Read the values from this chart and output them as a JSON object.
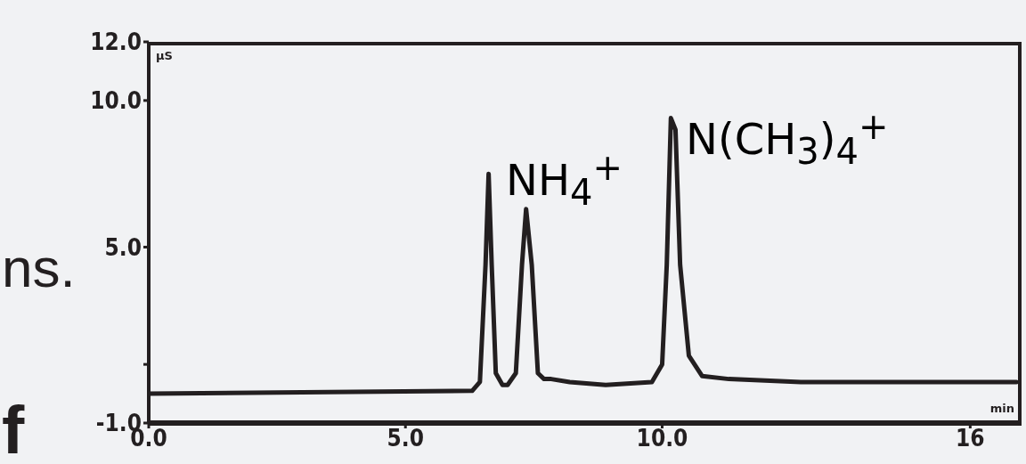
{
  "chart_data": {
    "type": "line",
    "xlabel": "min",
    "ylabel": "µS",
    "x": [
      0.0,
      6.3,
      6.45,
      6.56,
      6.62,
      6.68,
      6.76,
      6.89,
      6.99,
      7.15,
      7.27,
      7.35,
      7.46,
      7.58,
      7.7,
      7.84,
      8.2,
      8.9,
      9.8,
      10.0,
      10.09,
      10.17,
      10.26,
      10.35,
      10.52,
      10.78,
      11.3,
      12.7,
      16.9
    ],
    "series": [
      {
        "color": "#231f20",
        "values": [
          0.0,
          0.1,
          0.4,
          4.4,
          7.5,
          4.4,
          0.7,
          0.3,
          0.3,
          0.7,
          4.4,
          6.3,
          4.4,
          0.7,
          0.5,
          0.5,
          0.4,
          0.3,
          0.4,
          1.0,
          4.4,
          9.4,
          9.0,
          4.4,
          1.3,
          0.6,
          0.5,
          0.4,
          0.4
        ]
      }
    ],
    "xlim": [
      0,
      17
    ],
    "xticks": [
      {
        "value": 0,
        "label": "0.0"
      },
      {
        "value": 5,
        "label": "5.0"
      },
      {
        "value": 10,
        "label": "10.0"
      },
      16
    ],
    "ylim": [
      -1,
      12
    ],
    "yticks": [
      {
        "value": -1,
        "label": "-1.0"
      },
      {
        "value": 1,
        "label": null
      },
      {
        "value": 5,
        "label": "5.0"
      },
      {
        "value": 10,
        "label": "10.0"
      },
      {
        "value": 12,
        "label": "12.0"
      }
    ],
    "grid": false,
    "legend": false,
    "marker": "none",
    "line_style": "solid",
    "annotations": [
      "NH$_{4}$$^{+}$",
      "N(CH$_{3}$)$_{4}$$^{+}$",
      "ns.",
      "f"
    ]
  }
}
